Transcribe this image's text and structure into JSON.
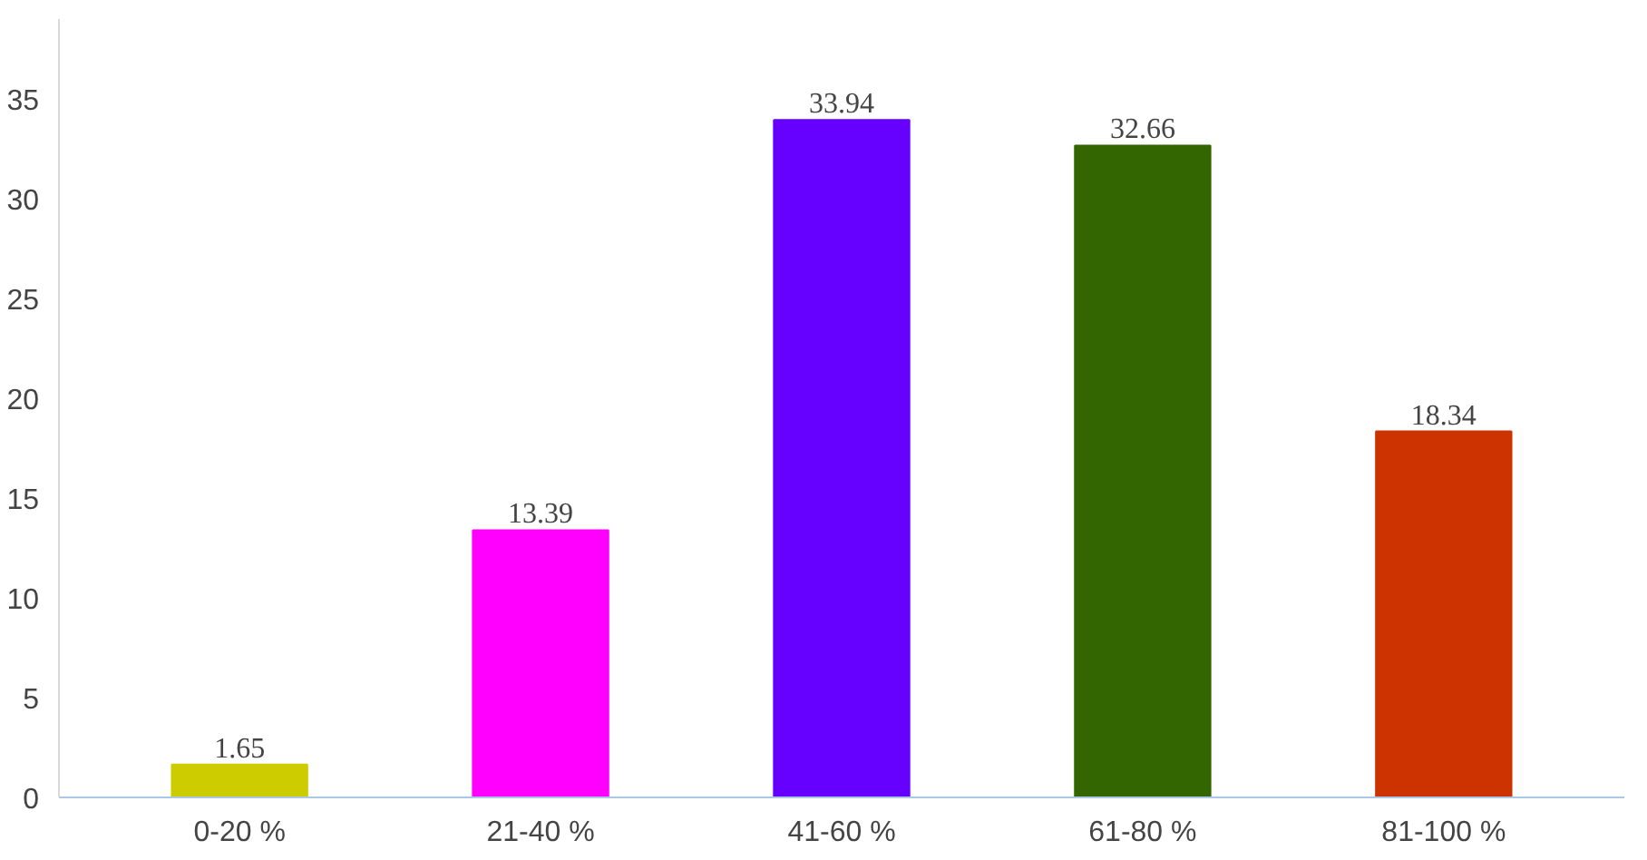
{
  "chart_data": {
    "type": "bar",
    "categories": [
      "0-20 %",
      "21-40 %",
      "41-60 %",
      "61-80 %",
      "81-100 %"
    ],
    "values": [
      1.65,
      13.39,
      33.94,
      32.66,
      18.34
    ],
    "colors": [
      "#cccc00",
      "#ff00ff",
      "#6600ff",
      "#336600",
      "#cc3300"
    ],
    "ylim": [
      0,
      39
    ],
    "yticks": [
      0,
      5,
      10,
      15,
      20,
      25,
      30,
      35
    ],
    "data_labels": true,
    "grid": false
  }
}
